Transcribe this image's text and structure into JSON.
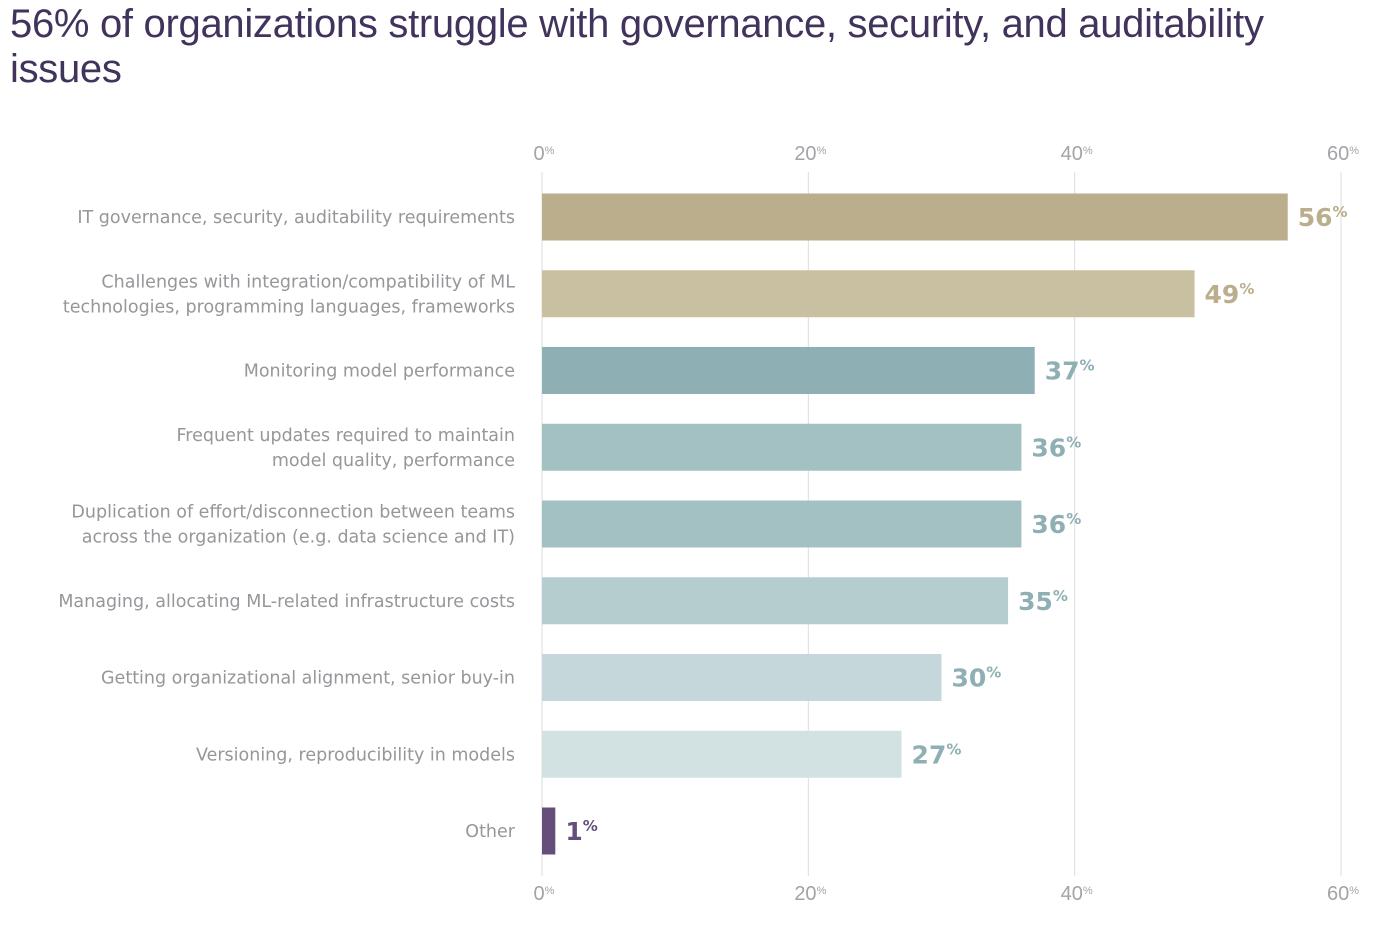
{
  "chart_data": {
    "type": "bar",
    "orientation": "horizontal",
    "title": "56% of organizations struggle with governance, security, and auditability issues",
    "xlabel": "",
    "ylabel": "",
    "xlim": [
      0,
      60
    ],
    "x_ticks": [
      0,
      20,
      40,
      60
    ],
    "x_tick_labels_top": [
      "0%",
      "20%",
      "40%",
      "60%"
    ],
    "x_tick_labels_bottom": [
      "0%",
      "20%",
      "40%",
      "60%"
    ],
    "grid": true,
    "legend": "none",
    "categories": [
      [
        "IT governance, security, auditability requirements"
      ],
      [
        "Challenges with integration/compatibility of ML",
        "technologies, programming languages, frameworks"
      ],
      [
        "Monitoring model performance"
      ],
      [
        "Frequent updates required to maintain",
        "model quality, performance"
      ],
      [
        "Duplication of effort/disconnection between teams",
        "across the organization (e.g. data science and IT)"
      ],
      [
        "Managing, allocating ML-related infrastructure costs"
      ],
      [
        "Getting organizational alignment, senior buy-in"
      ],
      [
        "Versioning, reproducibility in models"
      ],
      [
        "Other"
      ]
    ],
    "values": [
      56,
      49,
      37,
      36,
      36,
      35,
      30,
      27,
      1
    ],
    "value_labels": [
      "56",
      "49",
      "37",
      "36",
      "36",
      "35",
      "30",
      "27",
      "1"
    ],
    "value_suffix": "%",
    "bar_colors": [
      "#baae8c",
      "#c9c0a2",
      "#8eb0b4",
      "#a3c1c3",
      "#a3c1c3",
      "#b5cdcf",
      "#c5d7db",
      "#d2e1e2",
      "#654f7a"
    ],
    "label_colors": [
      "#baae8c",
      "#baae8c",
      "#8eb0b4",
      "#8eb0b4",
      "#8eb0b4",
      "#8eb0b4",
      "#8eb0b4",
      "#8eb0b4",
      "#654f7a"
    ]
  }
}
